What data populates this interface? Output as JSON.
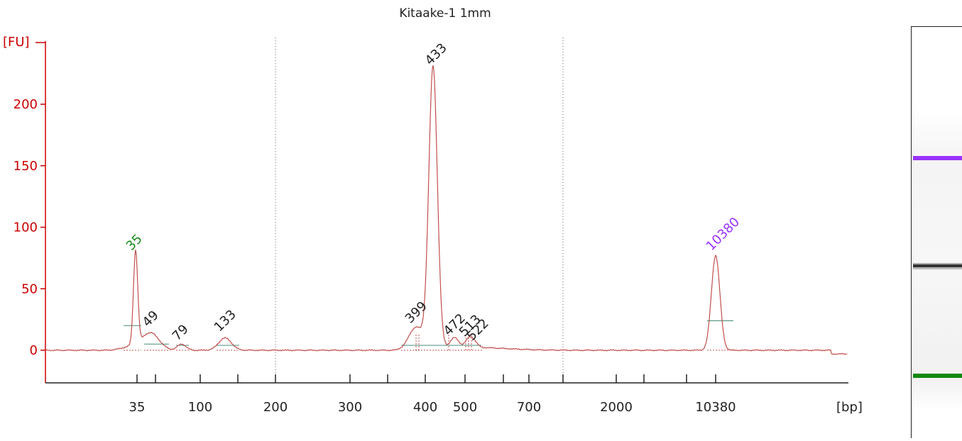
{
  "chart_data": {
    "type": "line",
    "title": "Kitaake-1 1mm",
    "ylabel": "[FU]",
    "xlabel": "[bp]",
    "ylim": [
      -25,
      250
    ],
    "y_ticks": [
      0,
      50,
      100,
      150,
      200
    ],
    "x_ticks": [
      "35",
      "",
      "100",
      "",
      "200",
      "300",
      "",
      "400",
      "500",
      "",
      "700",
      "",
      "2000",
      "",
      "",
      "10380"
    ],
    "peaks": [
      {
        "label": "35",
        "size_bp": 35,
        "height_fu": 76,
        "type": "lower_marker"
      },
      {
        "label": "49",
        "size_bp": 49,
        "height_fu": 14
      },
      {
        "label": "79",
        "size_bp": 79,
        "height_fu": 5
      },
      {
        "label": "133",
        "size_bp": 133,
        "height_fu": 10
      },
      {
        "label": "399",
        "size_bp": 399,
        "height_fu": 18
      },
      {
        "label": "433",
        "size_bp": 433,
        "height_fu": 229
      },
      {
        "label": "472",
        "size_bp": 472,
        "height_fu": 8
      },
      {
        "label": "513",
        "size_bp": 513,
        "height_fu": 6
      },
      {
        "label": "522",
        "size_bp": 522,
        "height_fu": 5
      },
      {
        "label": "10380",
        "size_bp": 10380,
        "height_fu": 77,
        "type": "upper_marker"
      }
    ],
    "grid": false,
    "legend": "none"
  },
  "colors": {
    "axis": "#cc0000",
    "trace": "#c0504d",
    "baseline": "#5a9a8a",
    "lower_marker": "#1a8a1a",
    "upper_marker": "#9933ff",
    "gel_lower_band": "#118811",
    "gel_upper_band": "#9933ff",
    "gel_sample_band": "#333333"
  }
}
